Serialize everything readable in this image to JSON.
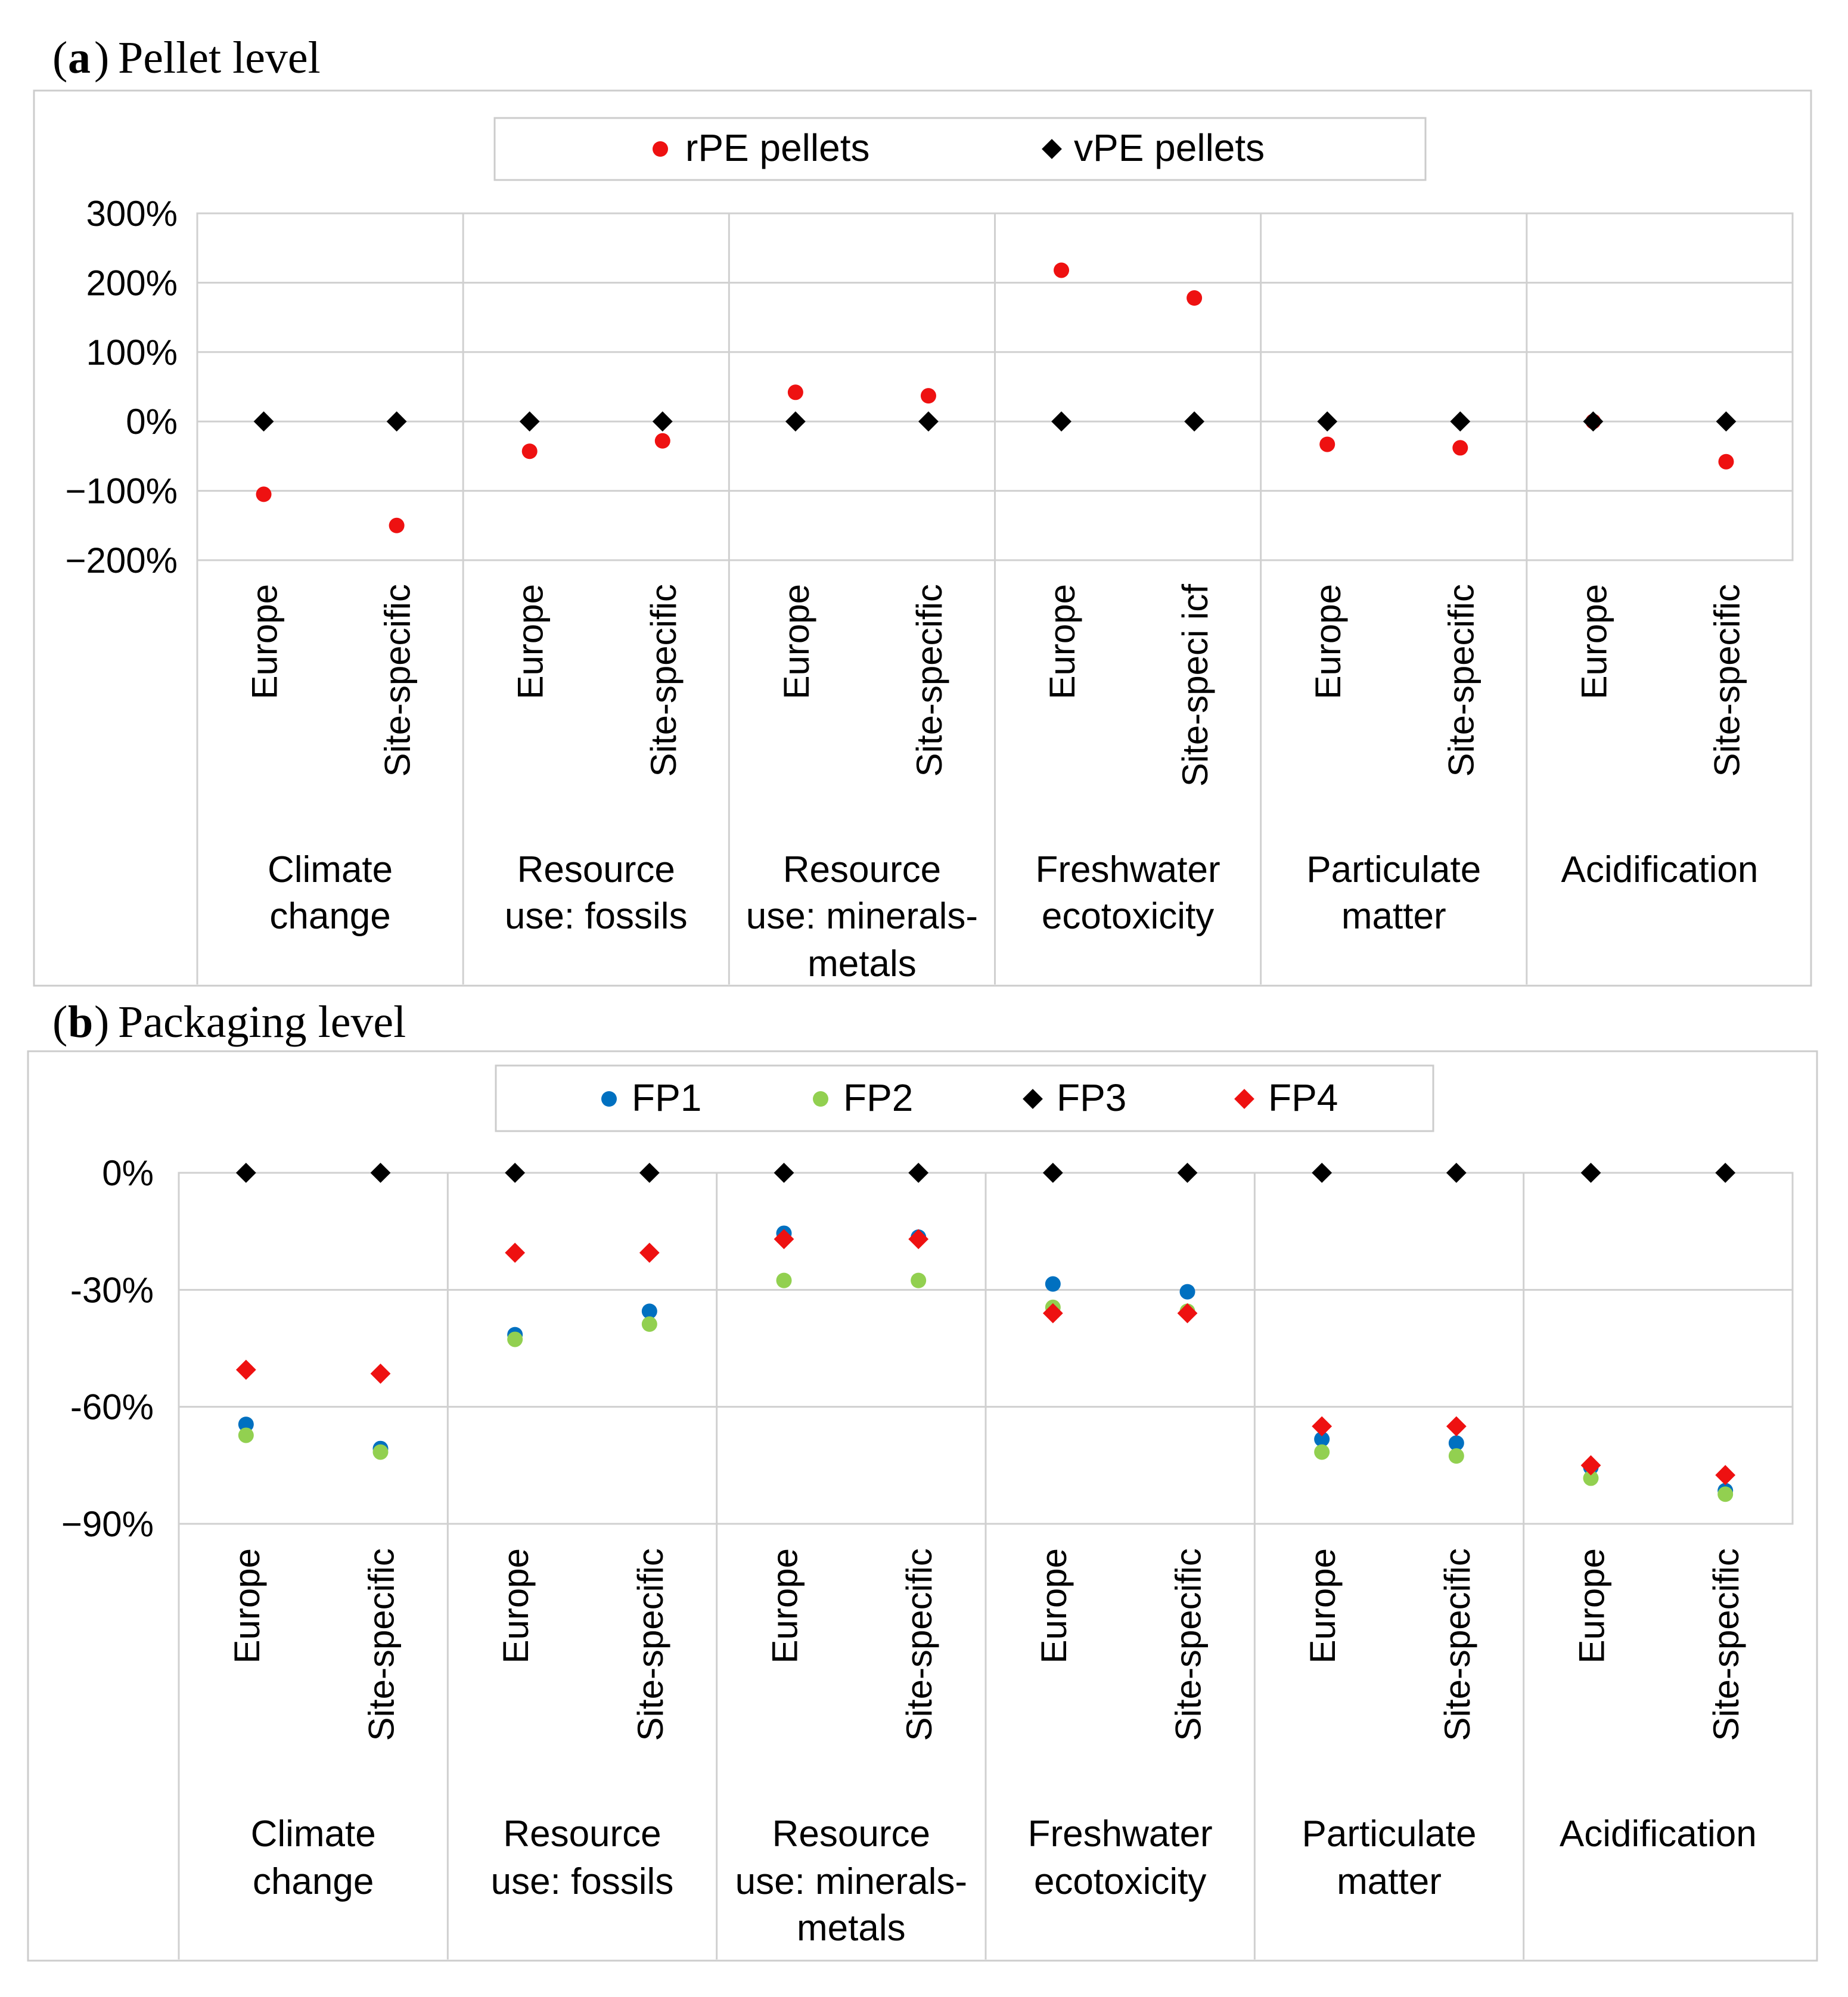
{
  "figure": {
    "panel_a": {
      "letter": "a",
      "title": "Pellet level"
    },
    "panel_b": {
      "letter": "b",
      "title": "Packaging level"
    }
  },
  "colors": {
    "red": "#EE1111",
    "black": "#000000",
    "blue": "#0070C0",
    "green": "#92D050",
    "frame": "#CCCCCC",
    "grid": "#D0D0D0"
  },
  "chart_data": [
    {
      "id": "a",
      "type": "scatter",
      "title": "(a) Pellet level",
      "ylim": [
        -200,
        300
      ],
      "yticks": [
        300,
        200,
        100,
        0,
        -100,
        -200
      ],
      "ytick_labels": [
        "300%",
        "200%",
        "100%",
        "0%",
        "−100%",
        "−200%"
      ],
      "legend_position": "top",
      "groups": [
        {
          "label_lines": [
            "Climate",
            "change"
          ],
          "sublabels": [
            "Europe",
            "Site-specific"
          ]
        },
        {
          "label_lines": [
            "Resource",
            "use: fossils"
          ],
          "sublabels": [
            "Europe",
            "Site-specific"
          ]
        },
        {
          "label_lines": [
            "Resource",
            "use: minerals-",
            "metals"
          ],
          "sublabels": [
            "Europe",
            "Site-specific"
          ]
        },
        {
          "label_lines": [
            "Freshwater",
            "ecotoxicity"
          ],
          "sublabels": [
            "Europe",
            "Site-speci icf"
          ]
        },
        {
          "label_lines": [
            "Particulate",
            "matter"
          ],
          "sublabels": [
            "Europe",
            "Site-specific"
          ]
        },
        {
          "label_lines": [
            "Acidification"
          ],
          "sublabels": [
            "Europe",
            "Site-specific"
          ]
        }
      ],
      "series": [
        {
          "name": "rPE pellets",
          "marker": "circle",
          "color": "#EE1111",
          "values": [
            -105,
            -150,
            -43,
            -28,
            42,
            37,
            218,
            178,
            -33,
            -38,
            0,
            -58
          ]
        },
        {
          "name": "vPE pellets",
          "marker": "diamond",
          "color": "#000000",
          "values": [
            0,
            0,
            0,
            0,
            0,
            0,
            0,
            0,
            0,
            0,
            0,
            0
          ]
        }
      ]
    },
    {
      "id": "b",
      "type": "scatter",
      "title": "(b) Packaging level",
      "ylim": [
        -90,
        0
      ],
      "yticks": [
        0,
        -30,
        -60,
        -90
      ],
      "ytick_labels": [
        "0%",
        "-30%",
        "-60%",
        "−90%"
      ],
      "legend_position": "top",
      "groups": [
        {
          "label_lines": [
            "Climate",
            "change"
          ],
          "sublabels": [
            "Europe",
            "Site-specific"
          ]
        },
        {
          "label_lines": [
            "Resource",
            "use: fossils"
          ],
          "sublabels": [
            "Europe",
            "Site-specific"
          ]
        },
        {
          "label_lines": [
            "Resource",
            "use: minerals-",
            "metals"
          ],
          "sublabels": [
            "Europe",
            "Site-specific"
          ]
        },
        {
          "label_lines": [
            "Freshwater",
            "ecotoxicity"
          ],
          "sublabels": [
            "Europe",
            "Site-specific"
          ]
        },
        {
          "label_lines": [
            "Particulate",
            "matter"
          ],
          "sublabels": [
            "Europe",
            "Site-specific"
          ]
        },
        {
          "label_lines": [
            "Acidification"
          ],
          "sublabels": [
            "Europe",
            "Site-specific"
          ]
        }
      ],
      "series": [
        {
          "name": "FP1",
          "marker": "circle",
          "color": "#0070C0",
          "values": [
            -64.5,
            -70.7,
            -41.5,
            -35.5,
            -15.5,
            -16.5,
            -28.5,
            -30.5,
            -68.3,
            -69.3,
            -75.5,
            -81.5
          ]
        },
        {
          "name": "FP2",
          "marker": "circle",
          "color": "#92D050",
          "values": [
            -67.3,
            -71.6,
            -42.7,
            -38.8,
            -27.6,
            -27.6,
            -34.5,
            -35.5,
            -71.6,
            -72.6,
            -78.3,
            -82.4
          ]
        },
        {
          "name": "FP3",
          "marker": "diamond",
          "color": "#000000",
          "values": [
            0,
            0,
            0,
            0,
            0,
            0,
            0,
            0,
            0,
            0,
            0,
            0
          ]
        },
        {
          "name": "FP4",
          "marker": "diamond",
          "color": "#EE1111",
          "values": [
            -50.5,
            -51.5,
            -20.5,
            -20.5,
            -17,
            -17,
            -36,
            -36,
            -65,
            -65,
            -75,
            -77.5
          ]
        }
      ]
    }
  ]
}
